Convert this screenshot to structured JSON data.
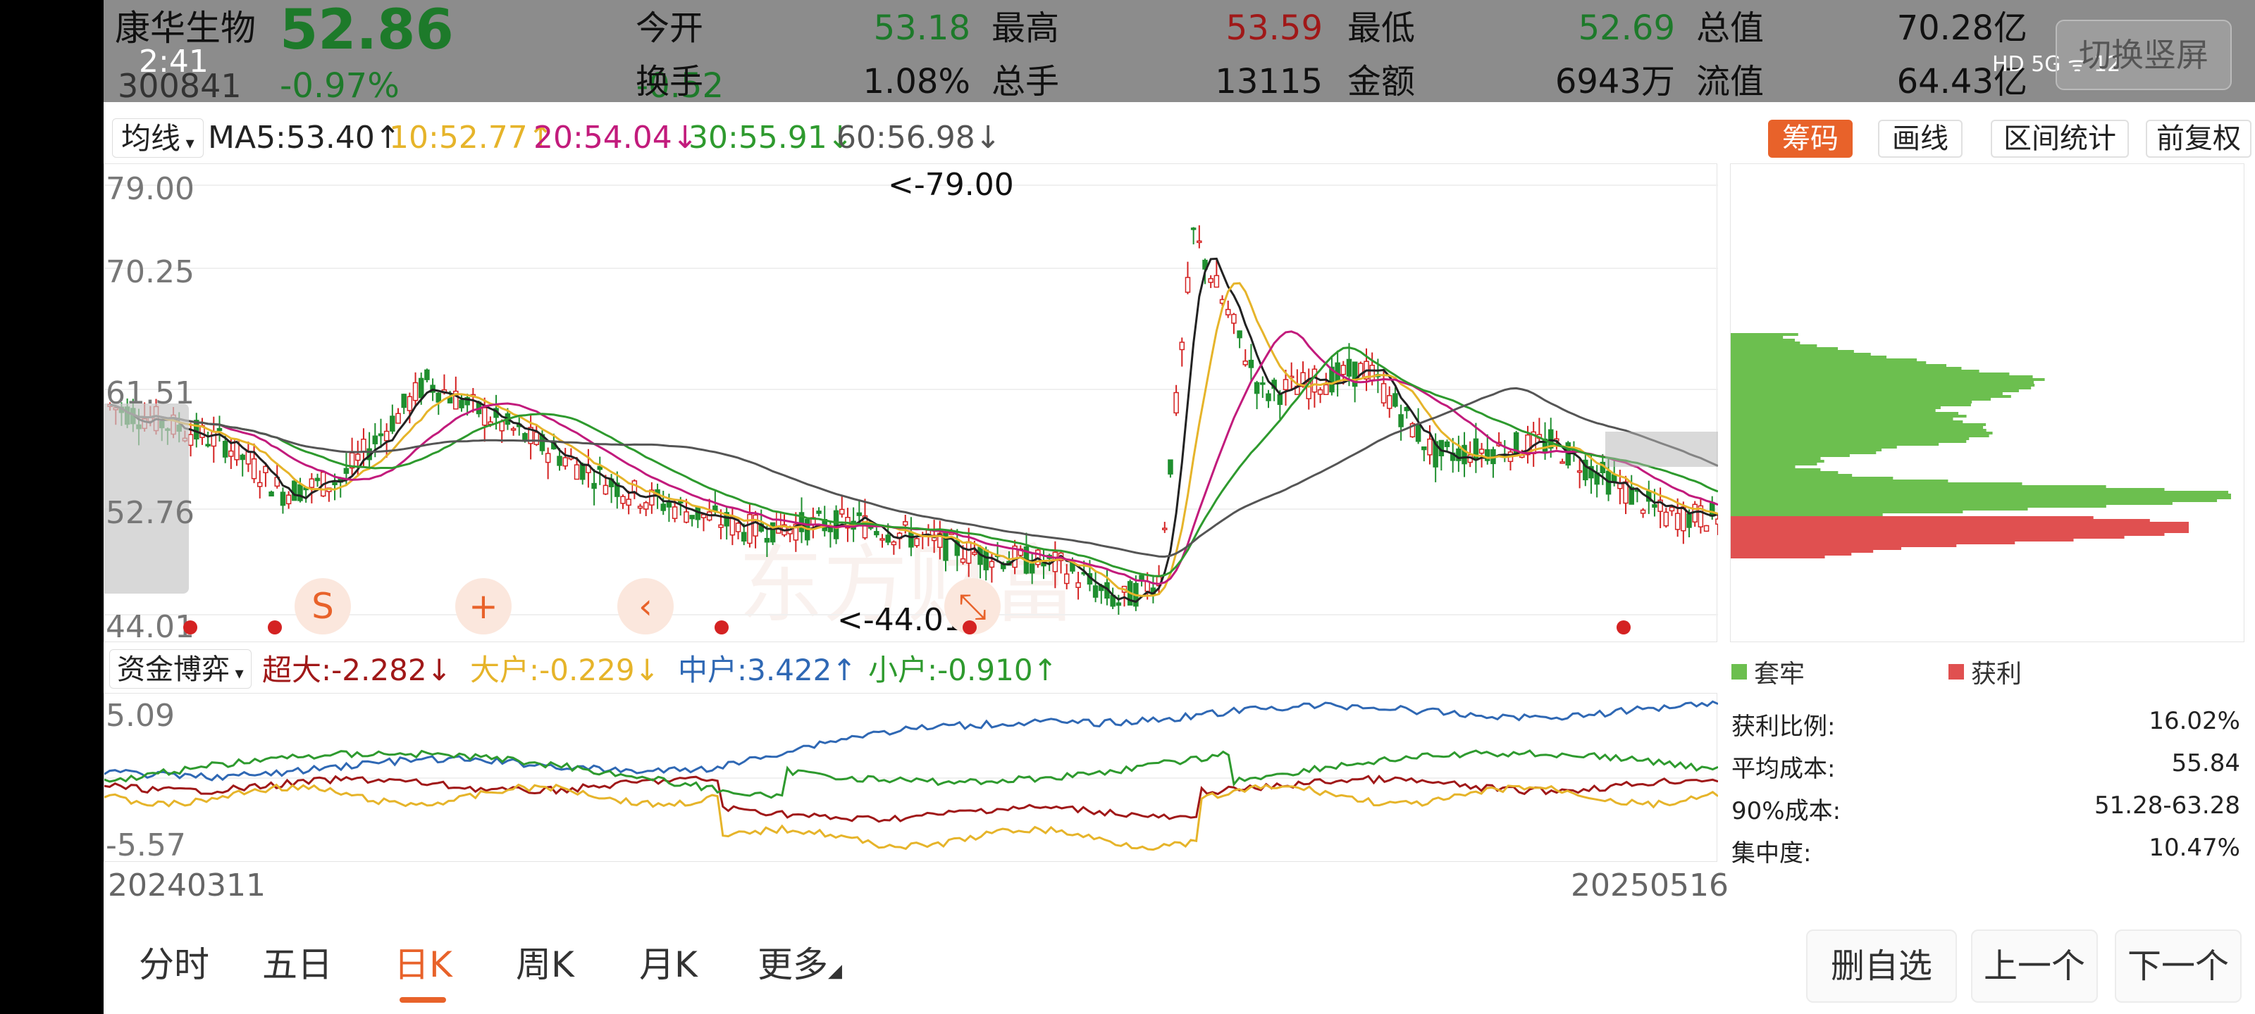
{
  "status": {
    "time": "2:41",
    "right": "HD 5G ᯤ 12"
  },
  "quote": {
    "name": "康华生物",
    "price": "52.86",
    "code": "300841",
    "pct": "-0.97%",
    "chg": "-0.52",
    "open_label": "今开",
    "open": "53.18",
    "high_label": "最高",
    "high": "53.59",
    "low_label": "最低",
    "low": "52.69",
    "total_val_label": "总值",
    "total_val": "70.28亿",
    "turnover_label": "换手",
    "turnover": "1.08%",
    "vol_label": "总手",
    "vol": "13115",
    "amount_label": "金额",
    "amount": "6943万",
    "float_val_label": "流值",
    "float_val": "64.43亿",
    "vertical_btn": "切换竖屏"
  },
  "ma": {
    "selector": "均线",
    "items": [
      {
        "text": "MA5:53.40↑",
        "color": "#222222"
      },
      {
        "text": "10:52.77↑",
        "color": "#e6b42a"
      },
      {
        "text": "20:54.04↓",
        "color": "#c21b7c"
      },
      {
        "text": "30:55.91↓",
        "color": "#2e9a2e"
      },
      {
        "text": "60:56.98↓",
        "color": "#555555"
      }
    ]
  },
  "tools": {
    "chips": "筹码",
    "draw": "画线",
    "range_stats": "区间统计",
    "adjust": "前复权"
  },
  "kchart": {
    "y_labels": [
      "79.00",
      "70.25",
      "61.51",
      "52.76",
      "44.01"
    ],
    "max_label": "<-79.00",
    "min_label": "<-44.01",
    "watermark": "东方财富"
  },
  "fund": {
    "selector": "资金博弈",
    "items": [
      {
        "text": "超大:-2.282↓",
        "color": "#a01818"
      },
      {
        "text": "大户:-0.229↓",
        "color": "#e6b42a"
      },
      {
        "text": "中户:3.422↑",
        "color": "#2f68b4"
      },
      {
        "text": "小户:-0.910↑",
        "color": "#2e9a2e"
      }
    ],
    "y_top": "5.09",
    "y_bottom": "-5.57"
  },
  "dates": {
    "start": "20240311",
    "end": "20250516"
  },
  "chip": {
    "legend_trapped": "套牢",
    "legend_profit": "获利",
    "colors": {
      "trapped": "#6cbf4f",
      "profit": "#e05050"
    },
    "stats": [
      {
        "label": "获利比例:",
        "value": "16.02%"
      },
      {
        "label": "平均成本:",
        "value": "55.84"
      },
      {
        "label": "90%成本:",
        "value": "51.28-63.28"
      },
      {
        "label": "集中度:",
        "value": "10.47%"
      }
    ]
  },
  "tabs": [
    "分时",
    "五日",
    "日K",
    "周K",
    "月K",
    "更多"
  ],
  "active_tab": "日K",
  "nav": {
    "delete": "删自选",
    "prev": "上一个",
    "next": "下一个"
  }
}
